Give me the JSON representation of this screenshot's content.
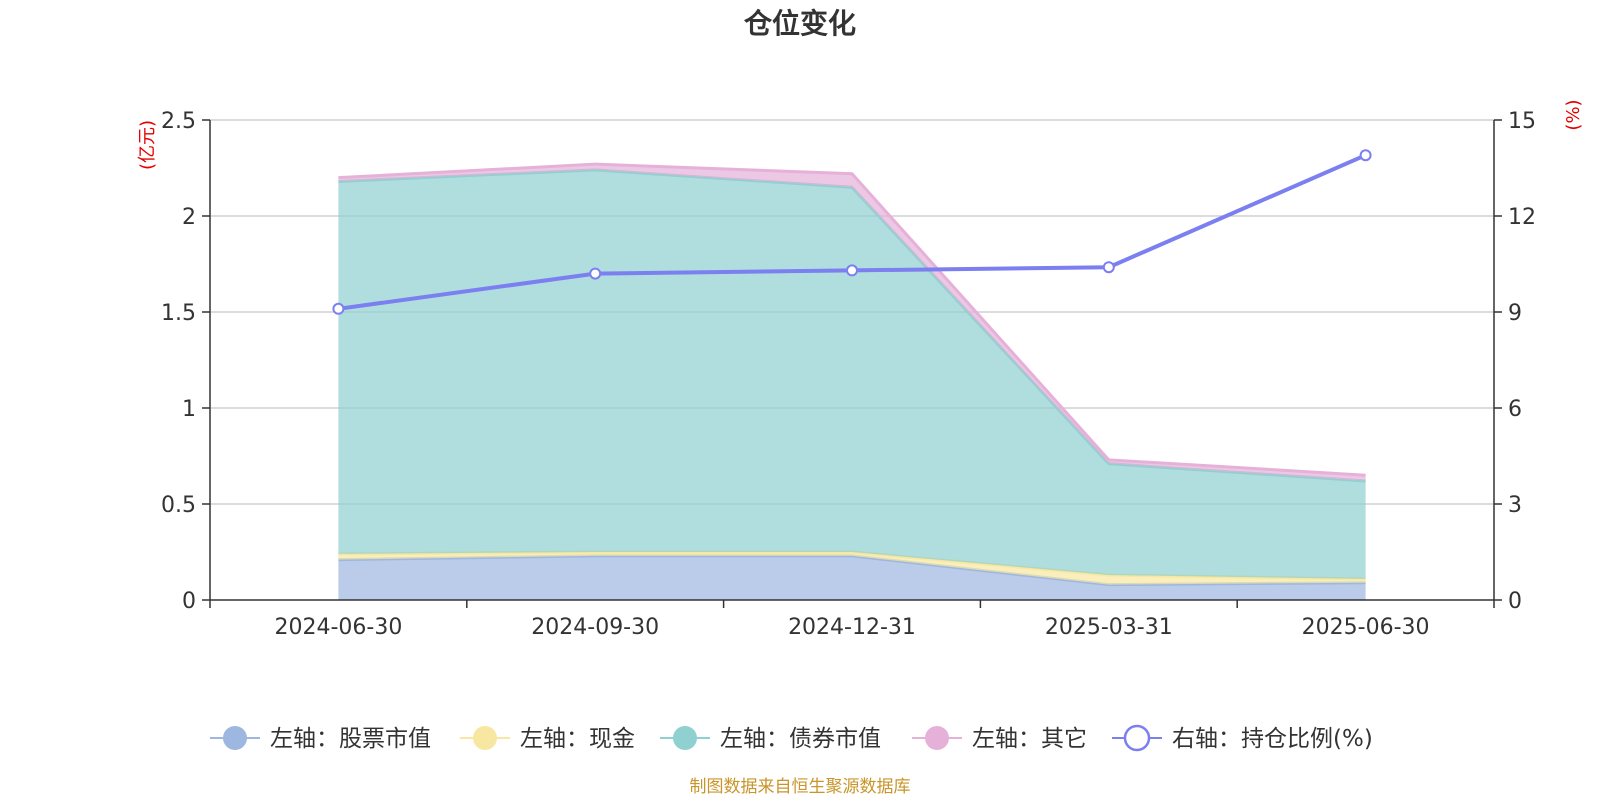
{
  "chart_data": {
    "type": "area",
    "title": "仓位变化",
    "categories": [
      "2024-06-30",
      "2024-09-30",
      "2024-12-31",
      "2025-03-31",
      "2025-06-30"
    ],
    "left_axis": {
      "unit_label": "(亿元)",
      "ylim": [
        0,
        2.5
      ],
      "ticks": [
        "0",
        "0.5",
        "1",
        "1.5",
        "2",
        "2.5"
      ],
      "tick_values": [
        0,
        0.5,
        1,
        1.5,
        2,
        2.5
      ]
    },
    "right_axis": {
      "unit_label": "(%)",
      "ylim": [
        0,
        15
      ],
      "ticks": [
        "0",
        "3",
        "6",
        "9",
        "12",
        "15"
      ],
      "tick_values": [
        0,
        3,
        6,
        9,
        12,
        15
      ]
    },
    "stacked_series": [
      {
        "name": "左轴：股票市值",
        "color": "#9db7e0",
        "values": [
          0.21,
          0.23,
          0.23,
          0.08,
          0.09
        ]
      },
      {
        "name": "左轴：现金",
        "color": "#f7e7a0",
        "values": [
          0.03,
          0.02,
          0.02,
          0.05,
          0.02
        ]
      },
      {
        "name": "左轴：债券市值",
        "color": "#8fd0d0",
        "values": [
          1.94,
          1.99,
          1.9,
          0.58,
          0.51
        ]
      },
      {
        "name": "左轴：其它",
        "color": "#e6b1d8",
        "values": [
          0.02,
          0.03,
          0.07,
          0.02,
          0.03
        ]
      }
    ],
    "line_series": {
      "name": "右轴：持仓比例(%)",
      "color": "#7b7ff0",
      "values": [
        9.1,
        10.2,
        10.3,
        10.4,
        13.9
      ]
    },
    "grid": true,
    "legend_position": "bottom"
  },
  "source_note": "制图数据来自恒生聚源数据库"
}
